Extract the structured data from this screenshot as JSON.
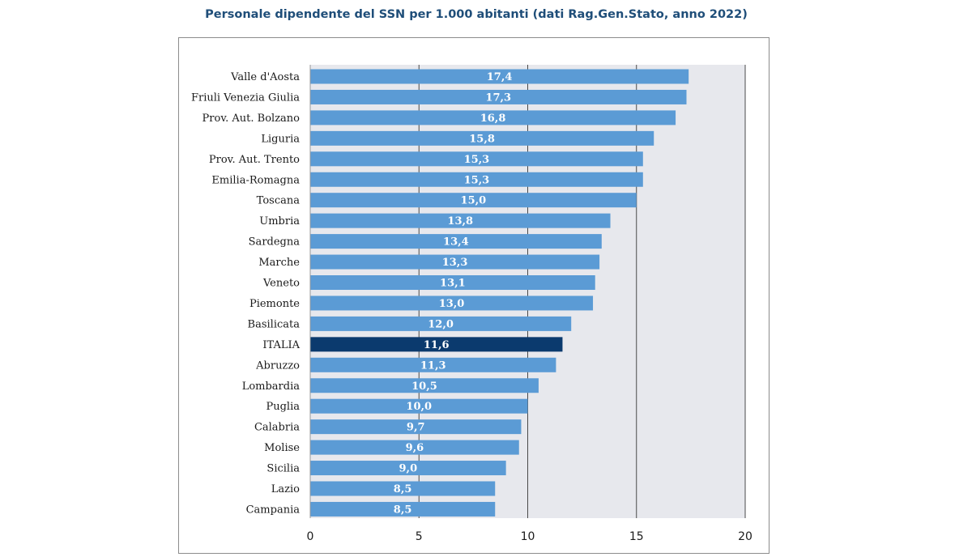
{
  "chart_data": {
    "type": "bar",
    "orientation": "horizontal",
    "title": "Personale dipendente del SSN per 1.000 abitanti (dati  Rag.Gen.Stato, anno 2022)",
    "categories": [
      "Valle d'Aosta",
      "Friuli Venezia Giulia",
      "Prov. Aut. Bolzano",
      "Liguria",
      "Prov. Aut. Trento",
      "Emilia-Romagna",
      "Toscana",
      "Umbria",
      "Sardegna",
      "Marche",
      "Veneto",
      "Piemonte",
      "Basilicata",
      "ITALIA",
      "Abruzzo",
      "Lombardia",
      "Puglia",
      "Calabria",
      "Molise",
      "Sicilia",
      "Lazio",
      "Campania"
    ],
    "values": [
      17.4,
      17.3,
      16.8,
      15.8,
      15.3,
      15.3,
      15.0,
      13.8,
      13.4,
      13.3,
      13.1,
      13.0,
      12.0,
      11.6,
      11.3,
      10.5,
      10.0,
      9.7,
      9.6,
      9.0,
      8.5,
      8.5
    ],
    "labels": [
      "17,4",
      "17,3",
      "16,8",
      "15,8",
      "15,3",
      "15,3",
      "15,0",
      "13,8",
      "13,4",
      "13,3",
      "13,1",
      "13,0",
      "12,0",
      "11,6",
      "11,3",
      "10,5",
      "10,0",
      "9,7",
      "9,6",
      "9,0",
      "8,5",
      "8,5"
    ],
    "highlight": "ITALIA",
    "xlim": [
      0,
      20
    ],
    "xticks": [
      0,
      5,
      10,
      15,
      20
    ],
    "xtick_labels": [
      "0",
      "5",
      "10",
      "15",
      "20"
    ],
    "grid": true,
    "colors": {
      "bar": "#5b9bd5",
      "highlight": "#0b3a6e",
      "plot_bg": "#e7e8ed",
      "grid": "#4a4a4a",
      "title": "#1f4e79"
    }
  }
}
